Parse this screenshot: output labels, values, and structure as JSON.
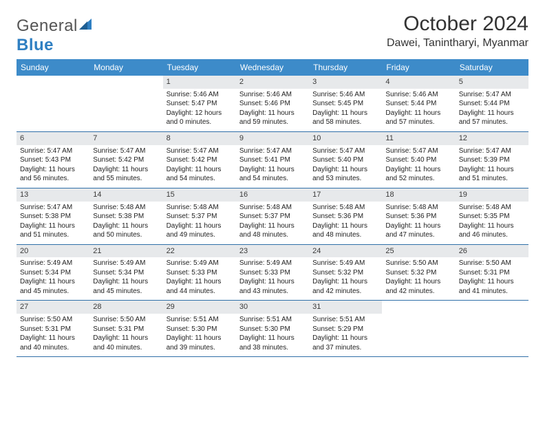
{
  "brand": {
    "part1": "General",
    "part2": "Blue"
  },
  "title": "October 2024",
  "location": "Dawei, Tanintharyi, Myanmar",
  "colors": {
    "header_bg": "#3d8bc9",
    "header_text": "#ffffff",
    "daynum_bg": "#e7e9eb",
    "week_border": "#2f6fa8",
    "brand_accent": "#2f7fc2"
  },
  "dayNames": [
    "Sunday",
    "Monday",
    "Tuesday",
    "Wednesday",
    "Thursday",
    "Friday",
    "Saturday"
  ],
  "weeks": [
    [
      null,
      null,
      {
        "n": "1",
        "sr": "Sunrise: 5:46 AM",
        "ss": "Sunset: 5:47 PM",
        "d1": "Daylight: 12 hours",
        "d2": "and 0 minutes."
      },
      {
        "n": "2",
        "sr": "Sunrise: 5:46 AM",
        "ss": "Sunset: 5:46 PM",
        "d1": "Daylight: 11 hours",
        "d2": "and 59 minutes."
      },
      {
        "n": "3",
        "sr": "Sunrise: 5:46 AM",
        "ss": "Sunset: 5:45 PM",
        "d1": "Daylight: 11 hours",
        "d2": "and 58 minutes."
      },
      {
        "n": "4",
        "sr": "Sunrise: 5:46 AM",
        "ss": "Sunset: 5:44 PM",
        "d1": "Daylight: 11 hours",
        "d2": "and 57 minutes."
      },
      {
        "n": "5",
        "sr": "Sunrise: 5:47 AM",
        "ss": "Sunset: 5:44 PM",
        "d1": "Daylight: 11 hours",
        "d2": "and 57 minutes."
      }
    ],
    [
      {
        "n": "6",
        "sr": "Sunrise: 5:47 AM",
        "ss": "Sunset: 5:43 PM",
        "d1": "Daylight: 11 hours",
        "d2": "and 56 minutes."
      },
      {
        "n": "7",
        "sr": "Sunrise: 5:47 AM",
        "ss": "Sunset: 5:42 PM",
        "d1": "Daylight: 11 hours",
        "d2": "and 55 minutes."
      },
      {
        "n": "8",
        "sr": "Sunrise: 5:47 AM",
        "ss": "Sunset: 5:42 PM",
        "d1": "Daylight: 11 hours",
        "d2": "and 54 minutes."
      },
      {
        "n": "9",
        "sr": "Sunrise: 5:47 AM",
        "ss": "Sunset: 5:41 PM",
        "d1": "Daylight: 11 hours",
        "d2": "and 54 minutes."
      },
      {
        "n": "10",
        "sr": "Sunrise: 5:47 AM",
        "ss": "Sunset: 5:40 PM",
        "d1": "Daylight: 11 hours",
        "d2": "and 53 minutes."
      },
      {
        "n": "11",
        "sr": "Sunrise: 5:47 AM",
        "ss": "Sunset: 5:40 PM",
        "d1": "Daylight: 11 hours",
        "d2": "and 52 minutes."
      },
      {
        "n": "12",
        "sr": "Sunrise: 5:47 AM",
        "ss": "Sunset: 5:39 PM",
        "d1": "Daylight: 11 hours",
        "d2": "and 51 minutes."
      }
    ],
    [
      {
        "n": "13",
        "sr": "Sunrise: 5:47 AM",
        "ss": "Sunset: 5:38 PM",
        "d1": "Daylight: 11 hours",
        "d2": "and 51 minutes."
      },
      {
        "n": "14",
        "sr": "Sunrise: 5:48 AM",
        "ss": "Sunset: 5:38 PM",
        "d1": "Daylight: 11 hours",
        "d2": "and 50 minutes."
      },
      {
        "n": "15",
        "sr": "Sunrise: 5:48 AM",
        "ss": "Sunset: 5:37 PM",
        "d1": "Daylight: 11 hours",
        "d2": "and 49 minutes."
      },
      {
        "n": "16",
        "sr": "Sunrise: 5:48 AM",
        "ss": "Sunset: 5:37 PM",
        "d1": "Daylight: 11 hours",
        "d2": "and 48 minutes."
      },
      {
        "n": "17",
        "sr": "Sunrise: 5:48 AM",
        "ss": "Sunset: 5:36 PM",
        "d1": "Daylight: 11 hours",
        "d2": "and 48 minutes."
      },
      {
        "n": "18",
        "sr": "Sunrise: 5:48 AM",
        "ss": "Sunset: 5:36 PM",
        "d1": "Daylight: 11 hours",
        "d2": "and 47 minutes."
      },
      {
        "n": "19",
        "sr": "Sunrise: 5:48 AM",
        "ss": "Sunset: 5:35 PM",
        "d1": "Daylight: 11 hours",
        "d2": "and 46 minutes."
      }
    ],
    [
      {
        "n": "20",
        "sr": "Sunrise: 5:49 AM",
        "ss": "Sunset: 5:34 PM",
        "d1": "Daylight: 11 hours",
        "d2": "and 45 minutes."
      },
      {
        "n": "21",
        "sr": "Sunrise: 5:49 AM",
        "ss": "Sunset: 5:34 PM",
        "d1": "Daylight: 11 hours",
        "d2": "and 45 minutes."
      },
      {
        "n": "22",
        "sr": "Sunrise: 5:49 AM",
        "ss": "Sunset: 5:33 PM",
        "d1": "Daylight: 11 hours",
        "d2": "and 44 minutes."
      },
      {
        "n": "23",
        "sr": "Sunrise: 5:49 AM",
        "ss": "Sunset: 5:33 PM",
        "d1": "Daylight: 11 hours",
        "d2": "and 43 minutes."
      },
      {
        "n": "24",
        "sr": "Sunrise: 5:49 AM",
        "ss": "Sunset: 5:32 PM",
        "d1": "Daylight: 11 hours",
        "d2": "and 42 minutes."
      },
      {
        "n": "25",
        "sr": "Sunrise: 5:50 AM",
        "ss": "Sunset: 5:32 PM",
        "d1": "Daylight: 11 hours",
        "d2": "and 42 minutes."
      },
      {
        "n": "26",
        "sr": "Sunrise: 5:50 AM",
        "ss": "Sunset: 5:31 PM",
        "d1": "Daylight: 11 hours",
        "d2": "and 41 minutes."
      }
    ],
    [
      {
        "n": "27",
        "sr": "Sunrise: 5:50 AM",
        "ss": "Sunset: 5:31 PM",
        "d1": "Daylight: 11 hours",
        "d2": "and 40 minutes."
      },
      {
        "n": "28",
        "sr": "Sunrise: 5:50 AM",
        "ss": "Sunset: 5:31 PM",
        "d1": "Daylight: 11 hours",
        "d2": "and 40 minutes."
      },
      {
        "n": "29",
        "sr": "Sunrise: 5:51 AM",
        "ss": "Sunset: 5:30 PM",
        "d1": "Daylight: 11 hours",
        "d2": "and 39 minutes."
      },
      {
        "n": "30",
        "sr": "Sunrise: 5:51 AM",
        "ss": "Sunset: 5:30 PM",
        "d1": "Daylight: 11 hours",
        "d2": "and 38 minutes."
      },
      {
        "n": "31",
        "sr": "Sunrise: 5:51 AM",
        "ss": "Sunset: 5:29 PM",
        "d1": "Daylight: 11 hours",
        "d2": "and 37 minutes."
      },
      null,
      null
    ]
  ]
}
